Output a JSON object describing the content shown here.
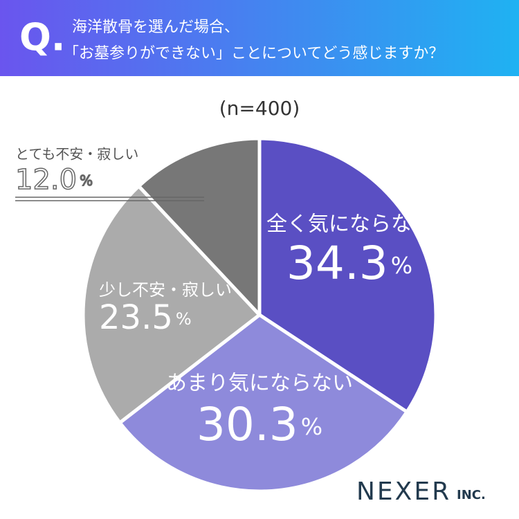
{
  "header": {
    "mark": "Q.",
    "lines": [
      "海洋散骨を選んだ場合、",
      "「お墓参りができない」ことについてどう感じますか？"
    ]
  },
  "chart_data": {
    "type": "pie",
    "subtitle": "(n=400)",
    "categories": [
      "全く気にならない",
      "あまり気にならない",
      "少し不安・寂しい",
      "とても不安・寂しい"
    ],
    "values": [
      34.3,
      30.3,
      23.5,
      12.0
    ],
    "value_labels": [
      "34.3",
      "30.3",
      "23.5",
      "12.0"
    ],
    "unit": "%",
    "colors": [
      "#5a4fc3",
      "#8e8adb",
      "#ababab",
      "#777777"
    ]
  },
  "logo": {
    "name": "NEXER",
    "suffix": "INC."
  }
}
